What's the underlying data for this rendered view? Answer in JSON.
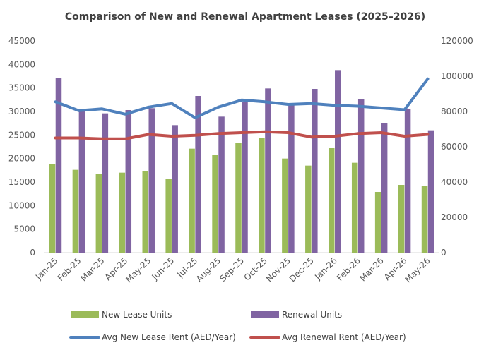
{
  "chart_data": {
    "type": "bar",
    "title": "Comparison of New and Renewal Apartment Leases (2025–2026)",
    "categories": [
      "Jan-25",
      "Feb-25",
      "Mar-25",
      "Apr-25",
      "May-25",
      "Jun-25",
      "Jul-25",
      "Aug-25",
      "Sep-25",
      "Oct-25",
      "Nov-25",
      "Dec-25",
      "Jan-26",
      "Feb-26",
      "Mar-26",
      "Apr-26",
      "May-26"
    ],
    "y_left": {
      "range": [
        0,
        45000
      ],
      "ticks": [
        "0",
        "5000",
        "10000",
        "15000",
        "20000",
        "25000",
        "30000",
        "35000",
        "40000",
        "45000"
      ]
    },
    "y_right": {
      "range": [
        0,
        120000
      ],
      "ticks": [
        "0",
        "20000",
        "40000",
        "60000",
        "80000",
        "100000",
        "120000"
      ]
    },
    "grid": false,
    "legend_position": "bottom",
    "series": [
      {
        "name": "New Lease Units",
        "kind": "bar",
        "axis": "left",
        "color": "#9BBB59",
        "values": [
          18900,
          17600,
          16800,
          17000,
          17400,
          15600,
          22100,
          20700,
          23400,
          24300,
          20000,
          18500,
          22200,
          19100,
          12900,
          14400,
          14100
        ]
      },
      {
        "name": "Renewal Units",
        "kind": "bar",
        "axis": "left",
        "color": "#8064A2",
        "values": [
          37100,
          30600,
          29600,
          30300,
          30700,
          27100,
          33300,
          28900,
          32000,
          34900,
          31700,
          34800,
          38800,
          32700,
          27600,
          30600,
          26000
        ]
      },
      {
        "name": "Avg New Lease Rent (AED/Year)",
        "kind": "line",
        "axis": "right",
        "color": "#4F81BD",
        "values": [
          85500,
          80500,
          81500,
          78500,
          82500,
          84500,
          76500,
          82500,
          86500,
          85500,
          84000,
          84500,
          83500,
          83000,
          82000,
          81000,
          98500
        ]
      },
      {
        "name": "Avg Renewal Rent (AED/Year)",
        "kind": "line",
        "axis": "right",
        "color": "#C0504D",
        "values": [
          65000,
          65000,
          64500,
          64500,
          67000,
          66000,
          66500,
          67500,
          68000,
          68500,
          68000,
          65500,
          66000,
          67500,
          68000,
          66000,
          67000
        ]
      }
    ]
  }
}
